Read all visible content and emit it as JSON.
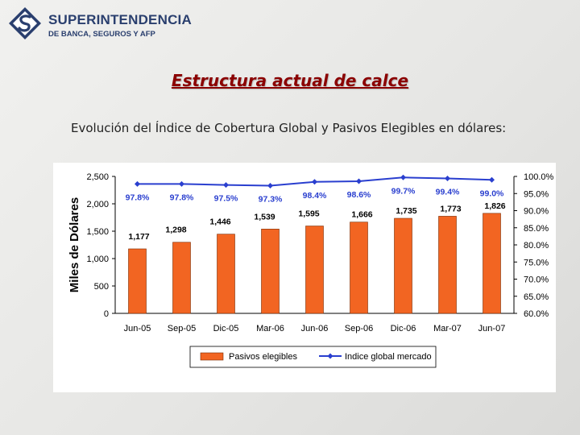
{
  "header": {
    "logo_name": "SUPERINTENDENCIA",
    "logo_sub": "DE BANCA, SEGUROS Y AFP"
  },
  "slide": {
    "title": "Estructura actual de calce",
    "subtitle": "Evolución del Índice de Cobertura Global y Pasivos Elegibles en dólares:"
  },
  "colors": {
    "bar": "#f26522",
    "bar_stroke": "#7a2a00",
    "line": "#2a3fcf",
    "title": "#8b0000",
    "logo": "#2a3f6e"
  },
  "chart_data": {
    "type": "bar",
    "categories": [
      "Jun-05",
      "Sep-05",
      "Dic-05",
      "Mar-06",
      "Jun-06",
      "Sep-06",
      "Dic-06",
      "Mar-07",
      "Jun-07"
    ],
    "series": [
      {
        "name": "Pasivos elegibles",
        "type": "bar",
        "axis": "left",
        "values": [
          1177,
          1298,
          1446,
          1539,
          1595,
          1666,
          1735,
          1773,
          1826
        ],
        "labels": [
          "1,177",
          "1,298",
          "1,446",
          "1,539",
          "1,595",
          "1,666",
          "1,735",
          "1,773",
          "1,826"
        ]
      },
      {
        "name": "Indice global mercado",
        "type": "line",
        "axis": "right",
        "values": [
          97.8,
          97.8,
          97.5,
          97.3,
          98.4,
          98.6,
          99.7,
          99.4,
          99.0
        ],
        "labels": [
          "97.8%",
          "97.8%",
          "97.5%",
          "97.3%",
          "98.4%",
          "98.6%",
          "99.7%",
          "99.4%",
          "99.0%"
        ]
      }
    ],
    "ylabel": "Miles de Dólares",
    "ylim": [
      0,
      2500
    ],
    "yticks": [
      0,
      500,
      1000,
      1500,
      2000,
      2500
    ],
    "ytick_labels": [
      "0",
      "500",
      "1,000",
      "1,500",
      "2,000",
      "2,500"
    ],
    "y2lim": [
      60,
      100
    ],
    "y2ticks": [
      60,
      65,
      70,
      75,
      80,
      85,
      90,
      95,
      100
    ],
    "y2tick_labels": [
      "60.0%",
      "65.0%",
      "70.0%",
      "75.0%",
      "80.0%",
      "85.0%",
      "90.0%",
      "95.0%",
      "100.0%"
    ],
    "legend": "bottom",
    "grid": false
  }
}
